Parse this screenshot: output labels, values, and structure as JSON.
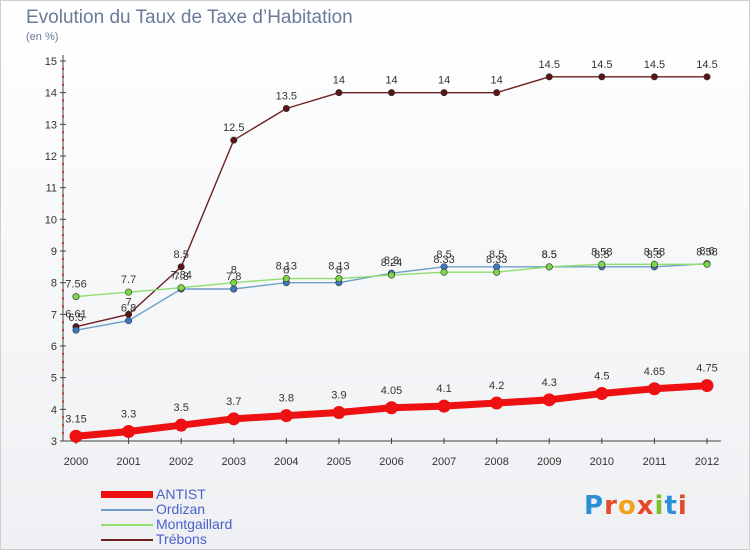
{
  "title": "Evolution du Taux de Taxe d’Habitation",
  "subtitle": "(en %)",
  "logo": {
    "text": "Proxiti",
    "letter_colors": [
      "#2a8fd6",
      "#e34b2a",
      "#f2a21a",
      "#e8462b",
      "#7bbf2a",
      "#2a8fd6",
      "#e34b2a"
    ]
  },
  "chart_data": {
    "type": "line",
    "title": "Evolution du Taux de Taxe d’Habitation",
    "ylabel": "(en %)",
    "x": [
      "2000",
      "2001",
      "2002",
      "2003",
      "2004",
      "2005",
      "2006",
      "2007",
      "2008",
      "2009",
      "2010",
      "2011",
      "2012"
    ],
    "ylim": [
      3,
      15
    ],
    "yticks": [
      3,
      4,
      5,
      6,
      7,
      8,
      9,
      10,
      11,
      12,
      13,
      14,
      15
    ],
    "grid": false,
    "legend_position": "bottom-left",
    "series": [
      {
        "name": "Trébons",
        "color": "#6e1f1f",
        "marker_color": "#5a1414",
        "width": 1.4,
        "marker_r": 3.2,
        "values": [
          6.61,
          7,
          8.5,
          12.5,
          13.5,
          14,
          14,
          14,
          14,
          14.5,
          14.5,
          14.5,
          14.5
        ],
        "labels": [
          "6.61",
          "7",
          "8.5",
          "12.5",
          "13.5",
          "14",
          "14",
          "14",
          "14",
          "14.5",
          "14.5",
          "14.5",
          "14.5"
        ]
      },
      {
        "name": "Ordizan",
        "color": "#6f9fc8",
        "marker_color": "#3b78c3",
        "width": 1.4,
        "marker_r": 3.2,
        "values": [
          6.5,
          6.8,
          7.8,
          7.8,
          8,
          8,
          8.3,
          8.5,
          8.5,
          8.5,
          8.5,
          8.5,
          8.6
        ],
        "labels": [
          "6.5",
          "6.8",
          "7.8",
          "7.8",
          "8",
          "8",
          "8.3",
          "8.5",
          "8.5",
          "8.5",
          "8.5",
          "8.5",
          "8.6"
        ]
      },
      {
        "name": "Montgaillard",
        "color": "#8fdf6f",
        "marker_color": "#7cd64b",
        "width": 1.4,
        "marker_r": 3.2,
        "values": [
          7.56,
          7.7,
          7.84,
          8,
          8.13,
          8.13,
          8.24,
          8.33,
          8.33,
          8.5,
          8.58,
          8.58,
          8.58
        ],
        "labels": [
          "7.56",
          "7.7",
          "7.84",
          "8",
          "8.13",
          "8.13",
          "8.24",
          "8.33",
          "8.33",
          "8.5",
          "8.58",
          "8.58",
          "8.58"
        ]
      },
      {
        "name": "ANTIST",
        "color": "#ee1111",
        "marker_color": "#ee1111",
        "width": 7,
        "marker_r": 6.5,
        "values": [
          3.15,
          3.3,
          3.5,
          3.7,
          3.8,
          3.9,
          4.05,
          4.1,
          4.2,
          4.3,
          4.5,
          4.65,
          4.75
        ],
        "labels": [
          "3.15",
          "3.3",
          "3.5",
          "3.7",
          "3.8",
          "3.9",
          "4.05",
          "4.1",
          "4.2",
          "4.3",
          "4.5",
          "4.65",
          "4.75"
        ]
      }
    ],
    "legend_order": [
      "ANTIST",
      "Ordizan",
      "Montgaillard",
      "Trébons"
    ]
  }
}
